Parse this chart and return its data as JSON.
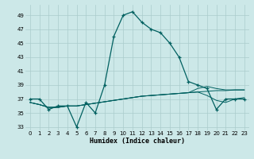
{
  "xlabel": "Humidex (Indice chaleur)",
  "background_color": "#cce8e8",
  "grid_color": "#aacccc",
  "line_color": "#006060",
  "xlim": [
    -0.5,
    23.5
  ],
  "ylim": [
    32.5,
    50.5
  ],
  "yticks": [
    33,
    35,
    37,
    39,
    41,
    43,
    45,
    47,
    49
  ],
  "xticks": [
    0,
    1,
    2,
    3,
    4,
    5,
    6,
    7,
    8,
    9,
    10,
    11,
    12,
    13,
    14,
    15,
    16,
    17,
    18,
    19,
    20,
    21,
    22,
    23
  ],
  "series1": [
    37.0,
    37.0,
    35.5,
    36.0,
    36.0,
    33.0,
    36.5,
    35.0,
    39.0,
    46.0,
    49.0,
    49.5,
    48.0,
    47.0,
    46.5,
    45.0,
    43.0,
    39.5,
    39.0,
    38.5,
    35.5,
    37.0,
    37.0,
    37.0
  ],
  "series2": [
    36.5,
    36.2,
    35.8,
    35.8,
    36.0,
    36.0,
    36.2,
    36.4,
    36.6,
    36.8,
    37.0,
    37.2,
    37.4,
    37.5,
    37.6,
    37.7,
    37.8,
    37.9,
    38.0,
    38.1,
    38.2,
    38.2,
    38.3,
    38.3
  ],
  "series3": [
    36.5,
    36.2,
    35.8,
    35.8,
    36.0,
    36.0,
    36.2,
    36.4,
    36.6,
    36.8,
    37.0,
    37.2,
    37.4,
    37.5,
    37.6,
    37.7,
    37.8,
    37.9,
    38.0,
    37.5,
    36.8,
    36.5,
    37.0,
    37.2
  ],
  "series4": [
    36.5,
    36.2,
    35.8,
    35.8,
    36.0,
    36.0,
    36.2,
    36.4,
    36.6,
    36.8,
    37.0,
    37.2,
    37.4,
    37.5,
    37.6,
    37.7,
    37.8,
    37.9,
    38.5,
    38.8,
    38.5,
    38.3,
    38.3,
    38.3
  ]
}
